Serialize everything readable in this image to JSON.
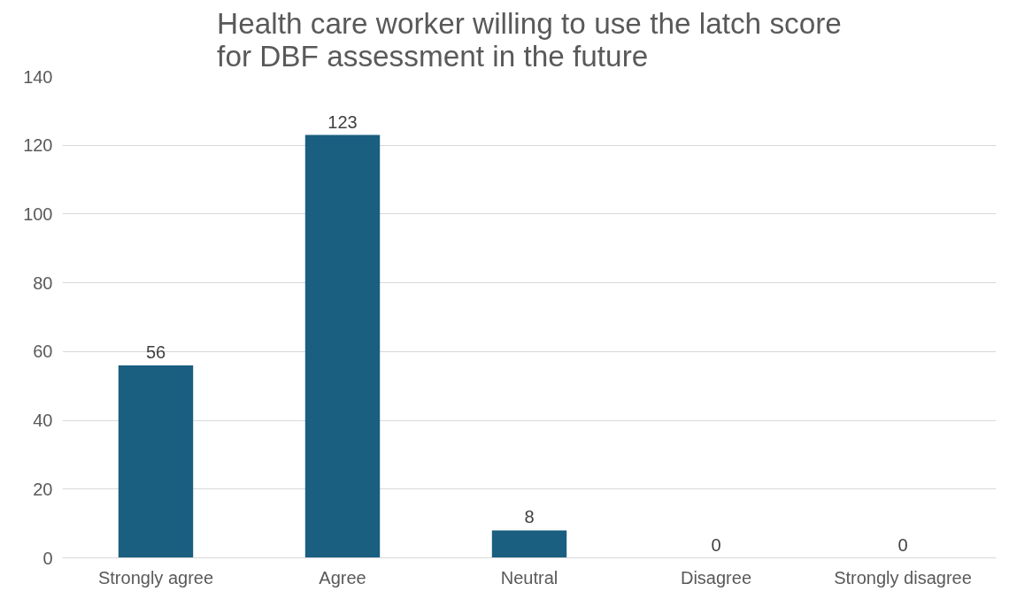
{
  "chart_data": {
    "type": "bar",
    "title": "Health care worker willing to use the latch score for DBF assessment in the future",
    "categories": [
      "Strongly agree",
      "Agree",
      "Neutral",
      "Disagree",
      "Strongly disagree"
    ],
    "values": [
      56,
      123,
      8,
      0,
      0
    ],
    "color": "#1a5e80",
    "ylim": [
      0,
      140
    ],
    "yticks": [
      0,
      20,
      40,
      60,
      80,
      100,
      120,
      140
    ],
    "grid": "y",
    "data_labels": true
  }
}
